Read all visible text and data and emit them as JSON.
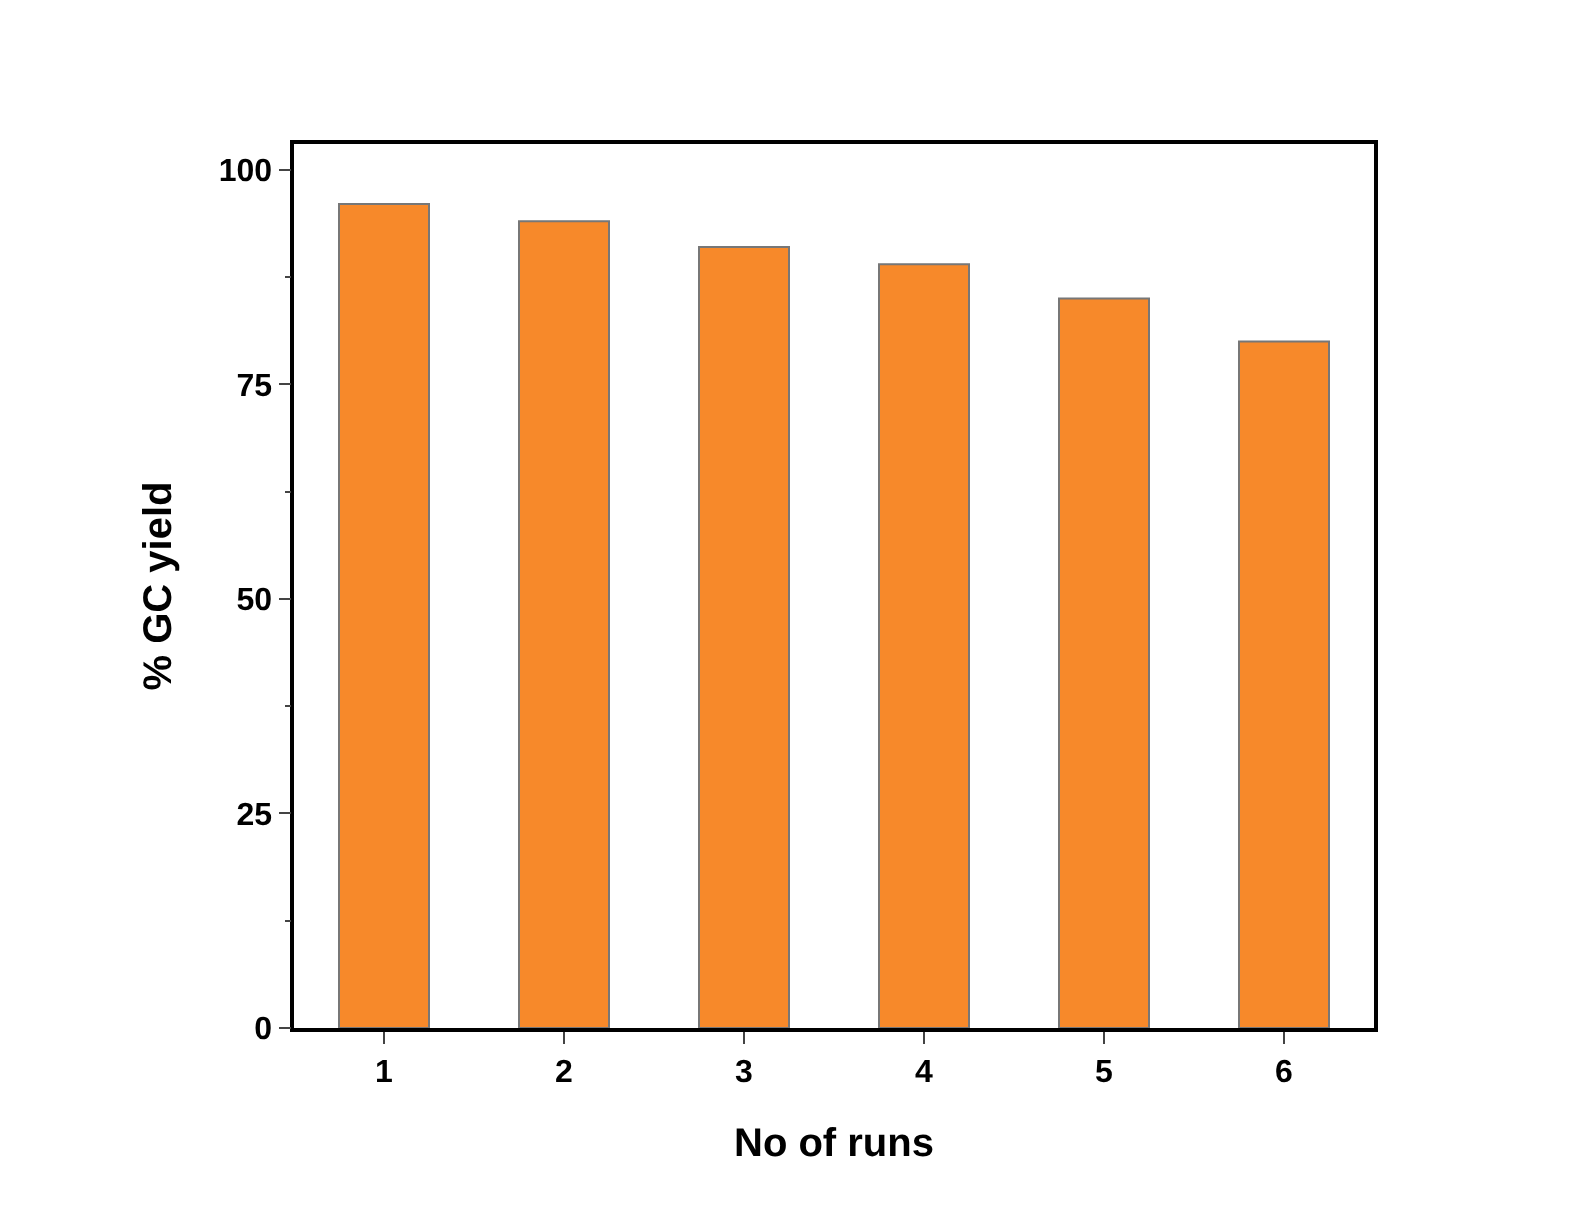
{
  "chart_data": {
    "type": "bar",
    "xlabel": "No of runs",
    "ylabel": "% GC yield",
    "categories": [
      "1",
      "2",
      "3",
      "4",
      "5",
      "6"
    ],
    "values": [
      96,
      94,
      91,
      89,
      85,
      80
    ],
    "color": "#f7892a",
    "ylim": [
      0,
      103
    ],
    "yticks": [
      0,
      25,
      50,
      75,
      100
    ],
    "grid": false
  }
}
